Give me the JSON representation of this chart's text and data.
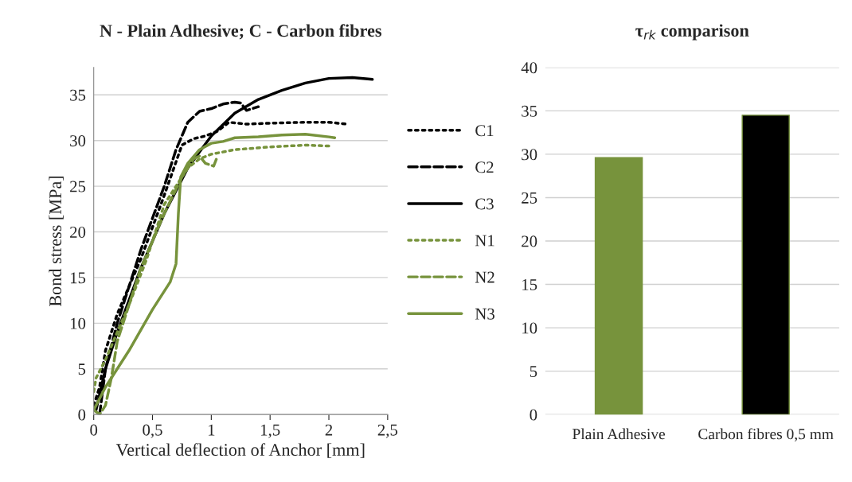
{
  "chart_data": [
    {
      "type": "line",
      "title": "N - Plain Adhesive; C - Carbon fibres",
      "xlabel": "Vertical deflection of Anchor [mm]",
      "ylabel": "Bond stress [MPa]",
      "xlim": [
        0,
        2.5
      ],
      "xticks": [
        0,
        {
          "value": 0.5,
          "label": "0,5"
        },
        1,
        {
          "value": 1.5,
          "label": "1,5"
        },
        2,
        {
          "value": 2.5,
          "label": "2,5"
        }
      ],
      "ylim": [
        0,
        38
      ],
      "yticks": [
        0,
        5,
        10,
        15,
        20,
        25,
        30,
        35
      ],
      "grid": "y",
      "legend": "right",
      "series": [
        {
          "name": "C1",
          "color": "#000000",
          "line_style": "dotted",
          "x": [
            0,
            0.05,
            0.1,
            0.2,
            0.4,
            0.6,
            0.75,
            0.85,
            0.95,
            1.05,
            1.15,
            1.3,
            1.5,
            1.8,
            2.0,
            2.15
          ],
          "values": [
            1,
            3,
            7,
            11,
            17,
            24,
            29.5,
            30.2,
            30.5,
            31,
            32,
            31.8,
            31.9,
            32,
            32,
            31.8
          ]
        },
        {
          "name": "C2",
          "color": "#000000",
          "line_style": "dashed",
          "x": [
            0.05,
            0.1,
            0.2,
            0.4,
            0.6,
            0.7,
            0.8,
            0.9,
            1.0,
            1.1,
            1.2,
            1.25,
            1.3,
            1.4
          ],
          "values": [
            0,
            5,
            10,
            18,
            25,
            29,
            32,
            33.2,
            33.5,
            34,
            34.2,
            34.1,
            33.3,
            33.7
          ]
        },
        {
          "name": "C3",
          "color": "#000000",
          "line_style": "solid",
          "x": [
            0.02,
            0.1,
            0.2,
            0.4,
            0.6,
            0.8,
            1.0,
            1.2,
            1.4,
            1.6,
            1.8,
            2.0,
            2.2,
            2.37
          ],
          "values": [
            0.5,
            5,
            9,
            16,
            22,
            27,
            30.5,
            33,
            34.5,
            35.5,
            36.3,
            36.8,
            36.9,
            36.7
          ]
        },
        {
          "name": "N1",
          "color": "#77933c",
          "line_style": "dotted",
          "x": [
            0,
            0.02,
            0.1,
            0.2,
            0.3,
            0.45,
            0.6,
            0.7,
            0.8,
            0.9,
            1.0,
            1.2,
            1.5,
            1.8,
            2.0
          ],
          "values": [
            2.5,
            4,
            6,
            9,
            12,
            17,
            23,
            25,
            27,
            28,
            28.5,
            29,
            29.3,
            29.5,
            29.4
          ]
        },
        {
          "name": "N2",
          "color": "#77933c",
          "line_style": "dashed",
          "x": [
            0,
            0.05,
            0.1,
            0.15,
            0.2,
            0.4,
            0.6,
            0.75,
            0.85,
            0.9,
            0.95,
            1.02,
            1.05
          ],
          "values": [
            0.5,
            0,
            1,
            4,
            8,
            16,
            22,
            26,
            28,
            28.3,
            27.5,
            27.2,
            28.2
          ]
        },
        {
          "name": "N3",
          "color": "#77933c",
          "line_style": "solid",
          "x": [
            0,
            0.1,
            0.3,
            0.5,
            0.65,
            0.7,
            0.72,
            0.74,
            0.8,
            0.9,
            1.0,
            1.1,
            1.2,
            1.4,
            1.6,
            1.8,
            2.0,
            2.05
          ],
          "values": [
            0.5,
            3,
            7,
            11.5,
            14.5,
            16.5,
            22,
            26,
            27.5,
            29,
            29.7,
            29.9,
            30.3,
            30.4,
            30.6,
            30.7,
            30.4,
            30.3
          ]
        }
      ]
    },
    {
      "type": "bar",
      "title": "τ$_{rk}$ comparison",
      "categories": [
        "Plain Adhesive",
        "Carbon fibres 0,5 mm"
      ],
      "values": [
        29.6,
        34.5
      ],
      "colors": [
        "#77933c",
        "#000000"
      ],
      "ylim": [
        0,
        40
      ],
      "yticks": [
        0,
        5,
        10,
        15,
        20,
        25,
        30,
        35,
        40
      ],
      "grid": "y"
    }
  ]
}
